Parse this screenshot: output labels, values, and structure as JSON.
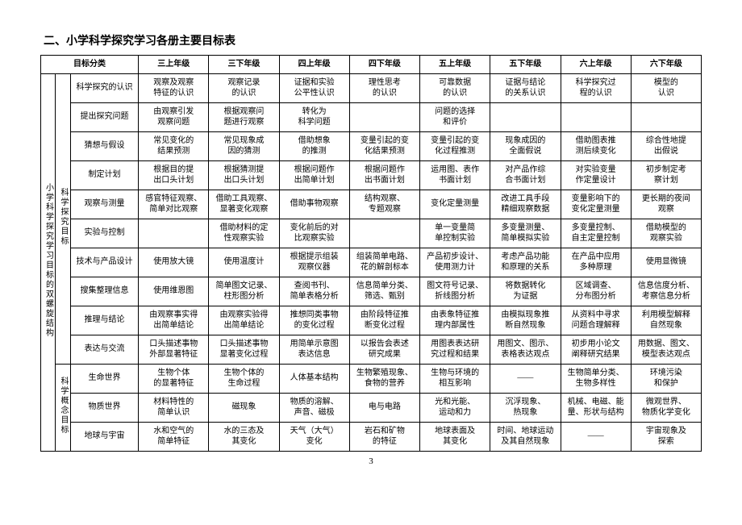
{
  "page_title": "二、小学科学探究学习各册主要目标表",
  "page_number": "3",
  "header": {
    "c0": "目标分类",
    "g1": "三上年级",
    "g2": "三下年级",
    "g3": "四上年级",
    "g4": "四下年级",
    "g5": "五上年级",
    "g6": "五下年级",
    "g7": "六上年级",
    "g8": "六下年级"
  },
  "side1": "小学科学探究学习目标的双螺旋结构",
  "side2a": "科学探究目标",
  "side2b": "科学概念目标",
  "rows": {
    "r1": {
      "cat": "科学探究的认识",
      "c1": "观察及观察\n特征的认识",
      "c2": "观察记录\n的认识",
      "c3": "证据和实验\n公平性认识",
      "c4": "理性思考\n的认识",
      "c5": "可靠数据\n的认识",
      "c6": "证据与结论\n的关系认识",
      "c7": "科学探究过\n程的认识",
      "c8": "模型的\n认识"
    },
    "r2": {
      "cat": "提出探究问题",
      "c1": "由观察引发\n观察问题",
      "c2": "根据观察问\n题进行观察",
      "c3": "转化为\n科学问题",
      "c4": "",
      "c5": "问题的选择\n和评价",
      "c6": "",
      "c7": "",
      "c8": ""
    },
    "r3": {
      "cat": "猜想与假设",
      "c1": "常见变化的\n结果预测",
      "c2": "常见现象成\n因的猜测",
      "c3": "借助想象\n的推测",
      "c4": "变量引起的变\n化结果预测",
      "c5": "变量引起的变\n化过程推测",
      "c6": "现象成因的\n全面假说",
      "c7": "借助图表推\n测后续变化",
      "c8": "综合性地提\n出假说"
    },
    "r4": {
      "cat": "制定计划",
      "c1": "根据目的提\n出口头计划",
      "c2": "根据猜测提\n出口头计划",
      "c3": "根据问题作\n出简单计划",
      "c4": "根据问题作\n出书面计划",
      "c5": "运用图、表作\n书面计划",
      "c6": "对产品作综\n合书面计划",
      "c7": "对实验变量\n作定量设计",
      "c8": "初步制定考\n察计划"
    },
    "r5": {
      "cat": "观察与测量",
      "c1": "感官特征观察、\n简单对比观察",
      "c2": "借助工具观察、\n显著变化观察",
      "c3": "借助事物观察",
      "c4": "结构观察、\n专题观察",
      "c5": "变化定量测量",
      "c6": "改进工具手段\n精细观察数据",
      "c7": "变量影响下的\n变化定量测量",
      "c8": "更长期的夜间\n观察"
    },
    "r6": {
      "cat": "实验与控制",
      "c1": "",
      "c2": "借助材料的定\n性观察实验",
      "c3": "变化前后的对\n比观察实验",
      "c4": "",
      "c5": "单一变量简\n单控制实验",
      "c6": "多变量测量、\n简单模拟实验",
      "c7": "多变量控制、\n自主定量控制",
      "c8": "借助模型的\n观察实验"
    },
    "r7": {
      "cat": "技术与产品设计",
      "c1": "使用放大镜",
      "c2": "使用温度计",
      "c3": "根据提示组装\n观察仪器",
      "c4": "组装简单电路、\n花的解剖标本",
      "c5": "产品初步设计、\n使用测力计",
      "c6": "考虑产品功能\n和原理的关系",
      "c7": "在产品中应用\n多种原理",
      "c8": "使用显微镜"
    },
    "r8": {
      "cat": "搜集整理信息",
      "c1": "使用维恩图",
      "c2": "简单图文记录、\n柱形图分析",
      "c3": "查阅书刊、\n简单表格分析",
      "c4": "信息简单分类、\n筛选、甄别",
      "c5": "图文符号记录、\n折线图分析",
      "c6": "将数据转化\n为证据",
      "c7": "区域调查、\n分布图分析",
      "c8": "信息信度分析、\n考察信息分析"
    },
    "r9": {
      "cat": "推理与结论",
      "c1": "由观察事实得\n出简单结论",
      "c2": "由观察实验得\n出简单结论",
      "c3": "推想同类事物\n的变化过程",
      "c4": "由阶段特征推\n断变化过程",
      "c5": "由表象特征推\n理内部属性",
      "c6": "由模拟现象推\n断自然现象",
      "c7": "从资料中寻求\n问题合理解释",
      "c8": "利用模型解释\n自然现象"
    },
    "r10": {
      "cat": "表达与交流",
      "c1": "口头描述事物\n外部显著特征",
      "c2": "口头描述事物\n显著变化过程",
      "c3": "用简单示意图\n表达信息",
      "c4": "以报告会表述\n研究成果",
      "c5": "用图表表达研\n究过程和结果",
      "c6": "用图文、图示、\n表格表达观点",
      "c7": "初步用小论文\n阐释研究结果",
      "c8": "用数据、图文、\n模型表达观点"
    },
    "r11": {
      "cat": "生命世界",
      "c1": "生物个体\n的显著特征",
      "c2": "生物个体的\n生命过程",
      "c3": "人体基本结构",
      "c4": "生物繁殖现象、\n食物的营养",
      "c5": "生物与环境的\n相互影响",
      "c6": "——",
      "c7": "生物简单分类、\n生物多样性",
      "c8": "环境污染\n和保护"
    },
    "r12": {
      "cat": "物质世界",
      "c1": "材料特性的\n简单认识",
      "c2": "磁现象",
      "c3": "物质的溶解、\n声音、磁极",
      "c4": "电与电路",
      "c5": "光和光能、\n运动和力",
      "c6": "沉浮现象、\n热现象",
      "c7": "机械、电磁、能\n量、形状与结构",
      "c8": "微观世界、\n物质化学变化"
    },
    "r13": {
      "cat": "地球与宇宙",
      "c1": "水和空气的\n简单特征",
      "c2": "水的三态及\n其变化",
      "c3": "天气（大气）\n变化",
      "c4": "岩石和矿物\n的特征",
      "c5": "地球表面及\n其变化",
      "c6": "时间、地球运动\n及其自然现象",
      "c7": "——",
      "c8": "宇宙现象及\n探索"
    }
  }
}
